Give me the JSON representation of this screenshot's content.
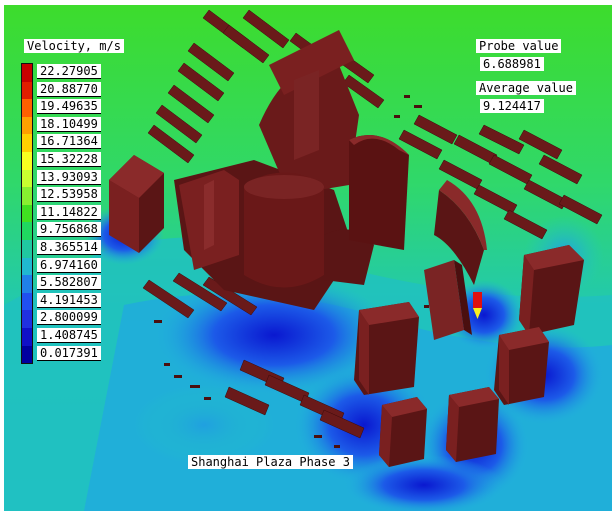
{
  "legend": {
    "title": "Velocity, m/s",
    "values": [
      "22.27905",
      "20.88770",
      "19.49635",
      "18.10499",
      "16.71364",
      "15.32228",
      "13.93093",
      "12.53958",
      "11.14822",
      "9.756868",
      "8.365514",
      "6.974160",
      "5.582807",
      "4.191453",
      "2.800099",
      "1.408745",
      "0.017391"
    ],
    "colors": [
      "#c80000",
      "#e01e00",
      "#ff6000",
      "#ffa000",
      "#ffd000",
      "#f8ff20",
      "#c8ff30",
      "#88f030",
      "#40e020",
      "#20d860",
      "#20c8a0",
      "#20b8d0",
      "#2080e8",
      "#2050f0",
      "#2030e0",
      "#1010c8",
      "#0000a0"
    ]
  },
  "probe": {
    "label": "Probe value",
    "value": "6.688981"
  },
  "average": {
    "label": "Average value",
    "value": "9.124417"
  },
  "annotation": "Shanghai Plaza Phase 3",
  "colors": {
    "background_green": "#3ddc2c",
    "field_teal": "#1ec8a8",
    "field_light_blue": "#20b0e0",
    "field_blue": "#1c5ae8",
    "field_deep_blue": "#0a10c8",
    "building": "#6a1a1a",
    "building_light": "#8a2a2a",
    "building_dark": "#4a0f0f"
  }
}
